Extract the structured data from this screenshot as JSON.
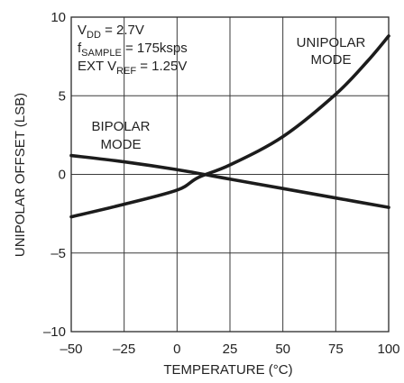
{
  "chart_data": {
    "type": "line",
    "title": "",
    "xlabel": "TEMPERATURE (°C)",
    "ylabel": "UNIPOLAR OFFSET (LSB)",
    "xlim": [
      -50,
      100
    ],
    "ylim": [
      -10,
      10
    ],
    "x_ticks": [
      -50,
      -25,
      0,
      25,
      50,
      75,
      100
    ],
    "x_tick_labels": [
      "–50",
      "–25",
      "0",
      "25",
      "50",
      "75",
      "100"
    ],
    "y_ticks": [
      -10,
      -5,
      0,
      5,
      10
    ],
    "y_tick_labels": [
      "–10",
      "–5",
      "0",
      "5",
      "10"
    ],
    "grid": true,
    "series": [
      {
        "name": "UNIPOLAR MODE",
        "x": [
          -50,
          -25,
          0,
          10,
          25,
          50,
          75,
          90,
          100
        ],
        "y": [
          -2.7,
          -1.9,
          -1.0,
          -0.2,
          0.6,
          2.4,
          5.1,
          7.2,
          8.8
        ]
      },
      {
        "name": "BIPOLAR MODE",
        "x": [
          -50,
          -25,
          0,
          25,
          50,
          75,
          100
        ],
        "y": [
          1.2,
          0.8,
          0.3,
          -0.3,
          -0.9,
          -1.5,
          -2.1
        ]
      }
    ],
    "annotations": {
      "conditions": [
        {
          "main": "V",
          "sub": "DD",
          "rest": " = 2.7V"
        },
        {
          "main": "f",
          "sub": "SAMPLE",
          "rest": " = 175ksps"
        },
        {
          "main": "EXT V",
          "sub": "REF",
          "rest": " = 1.25V"
        }
      ],
      "unipolar_label": [
        "UNIPOLAR",
        "MODE"
      ],
      "bipolar_label": [
        "BIPOLAR",
        "MODE"
      ]
    }
  }
}
